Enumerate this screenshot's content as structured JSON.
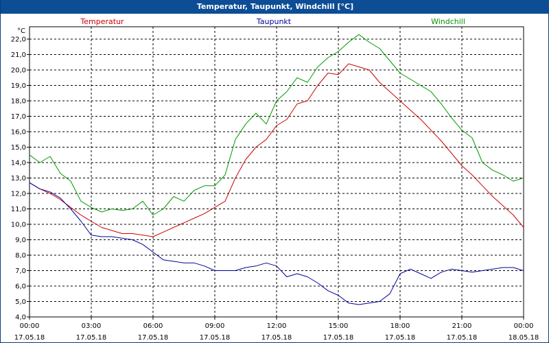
{
  "window": {
    "title": "Temperatur, Taupunkt, Windchill [°C]"
  },
  "chart_data": {
    "type": "line",
    "title": "Temperatur, Taupunkt, Windchill [°C]",
    "ylabel": "°C",
    "ylim": [
      4.0,
      22.8
    ],
    "xlim": [
      0,
      24
    ],
    "grid": true,
    "legend": "top",
    "y_ticks": [
      "4,0",
      "5,0",
      "6,0",
      "7,0",
      "8,0",
      "9,0",
      "10,0",
      "11,0",
      "12,0",
      "13,0",
      "14,0",
      "15,0",
      "16,0",
      "17,0",
      "18,0",
      "19,0",
      "20,0",
      "21,0",
      "22,0"
    ],
    "x_ticks": [
      {
        "time": "00:00",
        "date": "17.05.18"
      },
      {
        "time": "03:00",
        "date": "17.05.18"
      },
      {
        "time": "06:00",
        "date": "17.05.18"
      },
      {
        "time": "09:00",
        "date": "17.05.18"
      },
      {
        "time": "12:00",
        "date": "17.05.18"
      },
      {
        "time": "15:00",
        "date": "17.05.18"
      },
      {
        "time": "18:00",
        "date": "17.05.18"
      },
      {
        "time": "21:00",
        "date": "17.05.18"
      },
      {
        "time": "00:00",
        "date": "18.05.18"
      }
    ],
    "x_hours": [
      0,
      0.5,
      1,
      1.5,
      2,
      2.5,
      3,
      3.5,
      4,
      4.5,
      5,
      5.5,
      6,
      6.5,
      7,
      7.5,
      8,
      8.5,
      9,
      9.5,
      10,
      10.5,
      11,
      11.5,
      12,
      12.5,
      13,
      13.5,
      14,
      14.5,
      15,
      15.5,
      16,
      16.5,
      17,
      17.5,
      18,
      18.5,
      19,
      19.5,
      20,
      20.5,
      21,
      21.5,
      22,
      22.5,
      23,
      23.5,
      24
    ],
    "series": [
      {
        "name": "Temperatur",
        "color": "#cc0000",
        "values": [
          12.7,
          12.3,
          12.0,
          11.6,
          11.1,
          10.6,
          10.2,
          9.8,
          9.6,
          9.4,
          9.4,
          9.3,
          9.2,
          9.5,
          9.8,
          10.1,
          10.4,
          10.7,
          11.1,
          11.5,
          13.0,
          14.2,
          15.0,
          15.5,
          16.4,
          16.8,
          17.8,
          18.0,
          19.0,
          19.8,
          19.7,
          20.4,
          20.2,
          20.0,
          19.2,
          18.6,
          18.0,
          17.4,
          16.8,
          16.1,
          15.4,
          14.6,
          13.8,
          13.2,
          12.5,
          11.8,
          11.2,
          10.6,
          9.8
        ]
      },
      {
        "name": "Taupunkt",
        "color": "#000099",
        "values": [
          12.7,
          12.3,
          12.1,
          11.7,
          11.0,
          10.2,
          9.3,
          9.2,
          9.2,
          9.1,
          9.0,
          8.7,
          8.2,
          7.7,
          7.6,
          7.5,
          7.5,
          7.3,
          7.0,
          7.0,
          7.0,
          7.2,
          7.3,
          7.5,
          7.3,
          6.6,
          6.8,
          6.6,
          6.2,
          5.7,
          5.4,
          4.9,
          4.8,
          4.9,
          5.0,
          5.5,
          6.8,
          7.1,
          6.8,
          6.5,
          6.9,
          7.1,
          7.0,
          6.9,
          7.0,
          7.1,
          7.2,
          7.2,
          7.0
        ]
      },
      {
        "name": "Windchill",
        "color": "#009900",
        "values": [
          14.5,
          14.0,
          14.4,
          13.3,
          12.8,
          11.5,
          11.1,
          10.8,
          11.0,
          10.9,
          11.0,
          11.5,
          10.6,
          11.0,
          11.8,
          11.5,
          12.2,
          12.5,
          12.5,
          13.2,
          15.5,
          16.5,
          17.2,
          16.5,
          18.0,
          18.6,
          19.5,
          19.2,
          20.2,
          20.8,
          21.2,
          21.8,
          22.3,
          21.8,
          21.4,
          20.6,
          19.8,
          19.4,
          19.0,
          18.6,
          17.8,
          16.9,
          16.1,
          15.6,
          14.0,
          13.5,
          13.2,
          12.8,
          13.0
        ]
      }
    ]
  }
}
